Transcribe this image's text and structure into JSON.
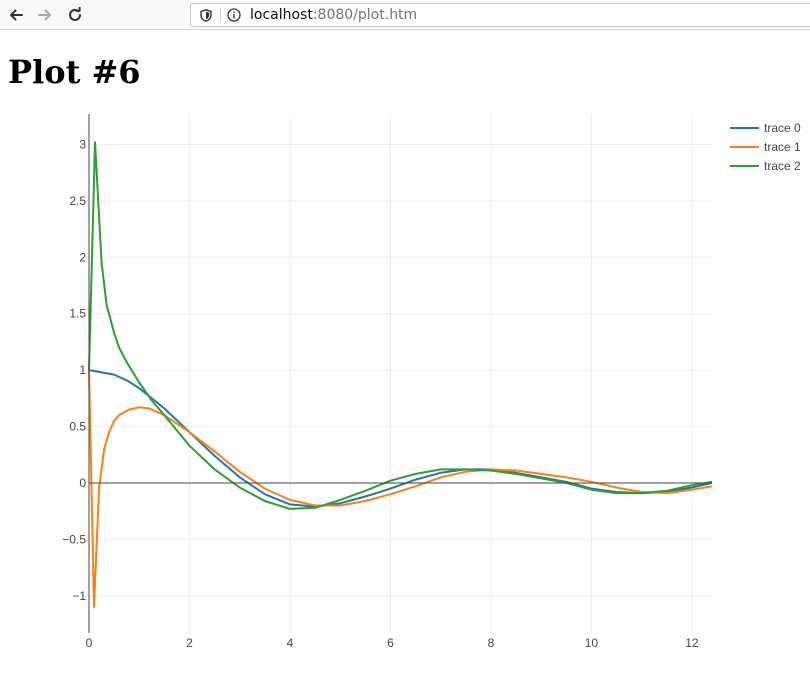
{
  "browser": {
    "url_host": "localhost",
    "url_rest": ":8080/plot.htm"
  },
  "page": {
    "title": "Plot #6"
  },
  "chart_data": {
    "type": "line",
    "title": "",
    "xlabel": "",
    "ylabel": "",
    "xlim": [
      0,
      12.4
    ],
    "ylim": [
      -1.33,
      3.27
    ],
    "x_ticks": [
      0,
      2,
      4,
      6,
      8,
      10,
      12
    ],
    "x_tick_labels": [
      "0",
      "2",
      "4",
      "6",
      "8",
      "10",
      "12"
    ],
    "y_ticks": [
      -1,
      -0.5,
      0,
      0.5,
      1,
      1.5,
      2,
      2.5,
      3
    ],
    "y_tick_labels": [
      "−1",
      "−0.5",
      "0",
      "0.5",
      "1",
      "1.5",
      "2",
      "2.5",
      "3"
    ],
    "grid": true,
    "legend_position": "top-right",
    "series": [
      {
        "name": "trace 0",
        "color": "#1f77b4",
        "x": [
          0,
          0.25,
          0.5,
          0.75,
          1,
          1.5,
          2,
          2.5,
          3,
          3.5,
          4,
          4.5,
          5,
          5.5,
          6,
          6.5,
          7,
          7.5,
          8,
          8.5,
          9,
          9.5,
          10,
          10.5,
          11,
          11.5,
          12,
          12.4
        ],
        "y": [
          1,
          0.98,
          0.96,
          0.91,
          0.84,
          0.66,
          0.45,
          0.24,
          0.05,
          -0.1,
          -0.19,
          -0.21,
          -0.18,
          -0.12,
          -0.05,
          0.03,
          0.09,
          0.12,
          0.12,
          0.09,
          0.05,
          0.01,
          -0.05,
          -0.08,
          -0.09,
          -0.08,
          -0.04,
          0
        ]
      },
      {
        "name": "trace 1",
        "color": "#ff7f0e",
        "x": [
          0,
          0.1,
          0.2,
          0.3,
          0.4,
          0.5,
          0.6,
          0.8,
          1,
          1.2,
          1.5,
          2,
          2.5,
          3,
          3.5,
          4,
          4.5,
          5,
          5.5,
          6,
          6.5,
          7,
          7.5,
          8,
          8.5,
          9,
          9.5,
          10,
          10.5,
          11,
          11.5,
          12,
          12.4
        ],
        "y": [
          1,
          -1.1,
          -0.05,
          0.3,
          0.45,
          0.55,
          0.6,
          0.65,
          0.67,
          0.66,
          0.6,
          0.45,
          0.28,
          0.1,
          -0.05,
          -0.15,
          -0.2,
          -0.2,
          -0.16,
          -0.1,
          -0.03,
          0.05,
          0.1,
          0.12,
          0.11,
          0.08,
          0.05,
          0.01,
          -0.04,
          -0.08,
          -0.09,
          -0.06,
          -0.03
        ]
      },
      {
        "name": "trace 2",
        "color": "#2ca02c",
        "x": [
          0,
          0.12,
          0.25,
          0.35,
          0.5,
          0.6,
          0.75,
          1,
          1.25,
          1.5,
          2,
          2.5,
          3,
          3.5,
          4,
          4.5,
          5,
          5.5,
          6,
          6.5,
          7,
          7.5,
          8,
          8.5,
          9,
          9.5,
          10,
          10.5,
          11,
          11.5,
          12,
          12.4
        ],
        "y": [
          1,
          3.02,
          1.95,
          1.58,
          1.33,
          1.2,
          1.07,
          0.89,
          0.73,
          0.6,
          0.33,
          0.12,
          -0.04,
          -0.16,
          -0.23,
          -0.22,
          -0.15,
          -0.07,
          0.02,
          0.08,
          0.12,
          0.12,
          0.11,
          0.08,
          0.04,
          0,
          -0.06,
          -0.09,
          -0.09,
          -0.07,
          -0.02,
          0.01
        ]
      }
    ]
  }
}
